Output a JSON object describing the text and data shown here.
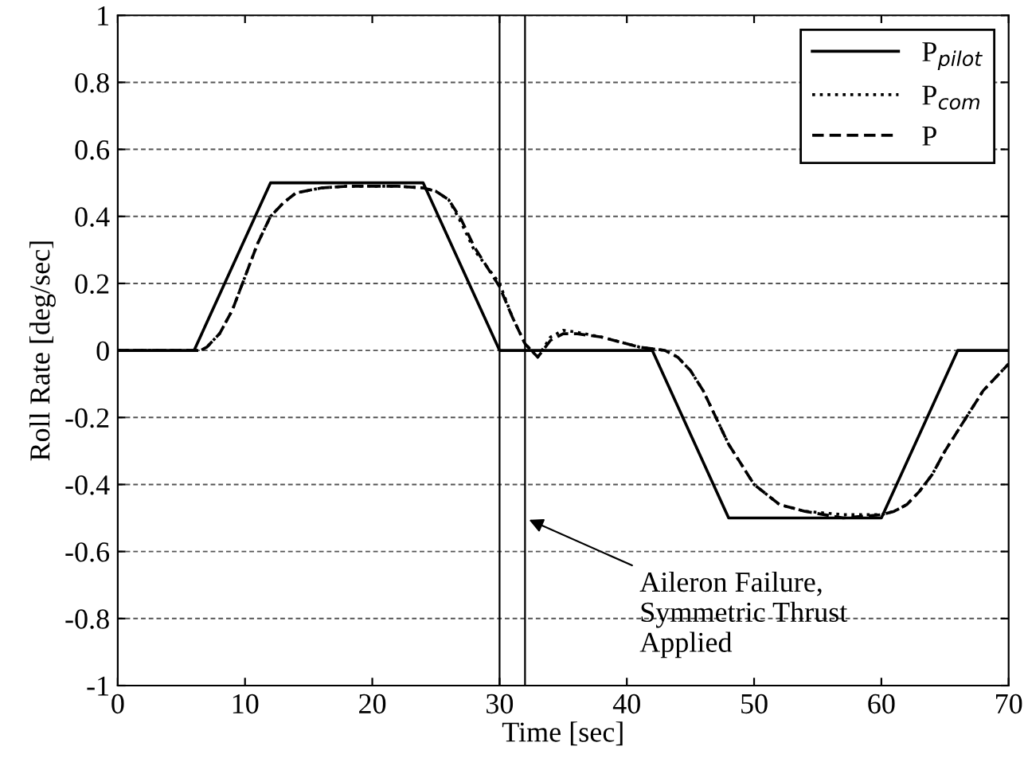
{
  "chart_data": {
    "type": "line",
    "xlabel": "Time [sec]",
    "ylabel": "Roll Rate [deg/sec]",
    "xlim": [
      0,
      70
    ],
    "xticks": [
      0,
      10,
      20,
      30,
      40,
      50,
      60,
      70
    ],
    "ylim": [
      -1,
      1
    ],
    "yticks": [
      -1,
      -0.8,
      -0.6,
      -0.4,
      -0.2,
      0,
      0.2,
      0.4,
      0.6,
      0.8,
      1
    ],
    "grid": "y",
    "legend": "top right",
    "series": [
      {
        "name": "P$_{pilot}$",
        "color": "#000000",
        "line_style": "solid",
        "x": [
          0,
          6,
          12,
          24,
          30,
          42,
          48,
          60,
          66,
          70
        ],
        "values": [
          0,
          0,
          0.5,
          0.5,
          0,
          0,
          -0.5,
          -0.5,
          0,
          0
        ]
      },
      {
        "name": "P$_{com}$",
        "color": "#000000",
        "line_style": "dotted",
        "x": [
          0,
          6.5,
          7,
          8,
          9,
          10,
          11,
          12,
          13,
          14,
          16,
          18,
          22,
          24,
          25,
          26,
          27,
          28,
          29,
          30,
          31,
          32,
          33,
          34,
          35,
          36,
          38,
          41,
          43,
          44,
          45,
          46,
          47,
          48,
          50,
          52,
          54,
          57,
          60,
          61,
          62,
          63,
          64,
          65,
          66,
          67,
          68,
          69,
          70
        ],
        "values": [
          0,
          0,
          0.01,
          0.05,
          0.12,
          0.22,
          0.32,
          0.4,
          0.44,
          0.47,
          0.485,
          0.49,
          0.49,
          0.485,
          0.475,
          0.45,
          0.38,
          0.3,
          0.25,
          0.2,
          0.1,
          0.02,
          -0.02,
          0.04,
          0.06,
          0.055,
          0.04,
          0.01,
          0,
          -0.02,
          -0.06,
          -0.12,
          -0.2,
          -0.28,
          -0.4,
          -0.46,
          -0.48,
          -0.49,
          -0.49,
          -0.48,
          -0.46,
          -0.42,
          -0.37,
          -0.3,
          -0.24,
          -0.18,
          -0.12,
          -0.08,
          -0.04
        ]
      },
      {
        "name": "P",
        "color": "#000000",
        "line_style": "dashed",
        "x": [
          0,
          6.5,
          7,
          8,
          9,
          10,
          11,
          12,
          13,
          14,
          16,
          18,
          22,
          24,
          25,
          26,
          27,
          28,
          29,
          30,
          31,
          32,
          33,
          34,
          35,
          36,
          38,
          41,
          43,
          44,
          45,
          46,
          47,
          48,
          50,
          52,
          54,
          57,
          60,
          61,
          62,
          63,
          64,
          65,
          66,
          67,
          68,
          69,
          70
        ],
        "values": [
          0,
          0,
          0.01,
          0.05,
          0.12,
          0.22,
          0.32,
          0.4,
          0.44,
          0.47,
          0.485,
          0.49,
          0.49,
          0.485,
          0.475,
          0.45,
          0.39,
          0.31,
          0.25,
          0.19,
          0.1,
          0.02,
          -0.02,
          0.03,
          0.05,
          0.05,
          0.04,
          0.01,
          0,
          -0.02,
          -0.06,
          -0.12,
          -0.2,
          -0.28,
          -0.4,
          -0.46,
          -0.48,
          -0.5,
          -0.49,
          -0.48,
          -0.46,
          -0.42,
          -0.37,
          -0.3,
          -0.24,
          -0.18,
          -0.12,
          -0.08,
          -0.04
        ]
      }
    ],
    "ref_lines": [
      {
        "axis": "x",
        "value": 30,
        "color": "#000000"
      },
      {
        "axis": "x",
        "value": 32,
        "color": "#000000"
      }
    ],
    "annotations": [
      {
        "text": "Aileron Failure,\nSymmetric Thrust\nApplied",
        "x": 32,
        "y": -0.5
      }
    ]
  }
}
